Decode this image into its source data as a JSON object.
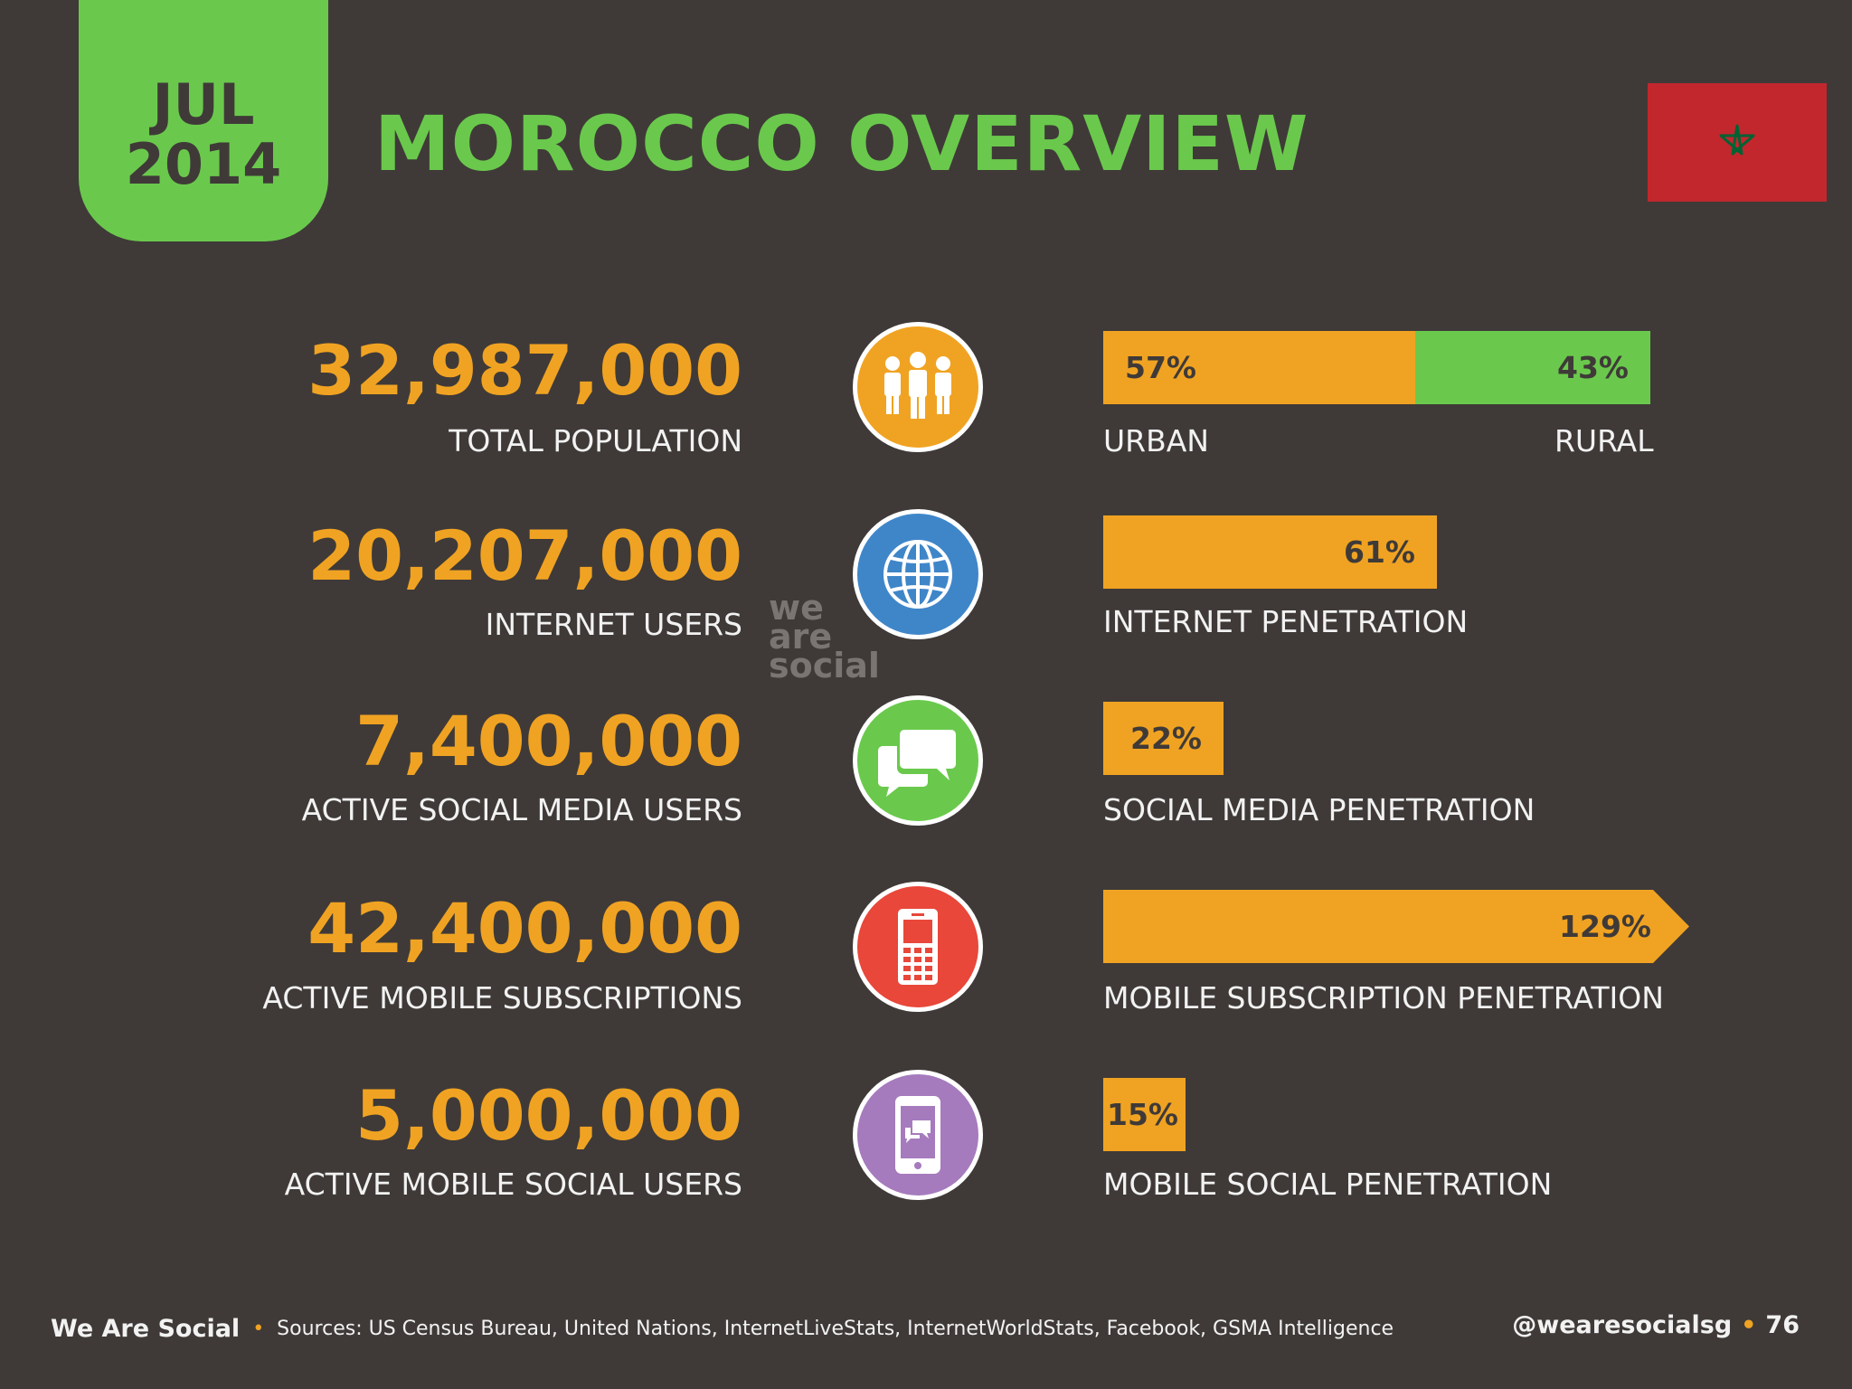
{
  "header": {
    "badge_month": "JUL",
    "badge_year": "2014",
    "title": "MOROCCO OVERVIEW"
  },
  "colors": {
    "background": "#3f3a38",
    "orange": "#f0a322",
    "green": "#6ac94c",
    "blue": "#3f86c9",
    "red": "#e8473a",
    "purple": "#a67bbd",
    "flag_red": "#c1272d",
    "flag_star": "#006233"
  },
  "stats": [
    {
      "value": "32,987,000",
      "label": "TOTAL POPULATION",
      "icon": "people-icon"
    },
    {
      "value": "20,207,000",
      "label": "INTERNET USERS",
      "icon": "globe-icon"
    },
    {
      "value": "7,400,000",
      "label": "ACTIVE SOCIAL MEDIA USERS",
      "icon": "chat-bubbles-icon"
    },
    {
      "value": "42,400,000",
      "label": "ACTIVE MOBILE SUBSCRIPTIONS",
      "icon": "mobile-phone-icon"
    },
    {
      "value": "5,000,000",
      "label": "ACTIVE MOBILE SOCIAL USERS",
      "icon": "smartphone-chat-icon"
    }
  ],
  "chart_data": {
    "type": "bar",
    "categories": [
      "URBAN / RURAL",
      "INTERNET PENETRATION",
      "SOCIAL MEDIA PENETRATION",
      "MOBILE SUBSCRIPTION PENETRATION",
      "MOBILE SOCIAL PENETRATION"
    ],
    "population_split": {
      "urban": {
        "label": "URBAN",
        "value": 57,
        "text": "57%"
      },
      "rural": {
        "label": "RURAL",
        "value": 43,
        "text": "43%"
      }
    },
    "penetration": [
      {
        "label": "INTERNET PENETRATION",
        "value": 61,
        "text": "61%"
      },
      {
        "label": "SOCIAL MEDIA PENETRATION",
        "value": 22,
        "text": "22%"
      },
      {
        "label": "MOBILE SUBSCRIPTION PENETRATION",
        "value": 129,
        "text": "129%"
      },
      {
        "label": "MOBILE SOCIAL PENETRATION",
        "value": 15,
        "text": "15%"
      }
    ]
  },
  "watermark": {
    "line1": "we",
    "line2": "are",
    "line3": "social"
  },
  "footer": {
    "brand": "We Are Social",
    "sources": "Sources: US Census Bureau, United Nations, InternetLiveStats, InternetWorldStats, Facebook, GSMA Intelligence",
    "handle": "@wearesocialsg",
    "page": "76"
  }
}
